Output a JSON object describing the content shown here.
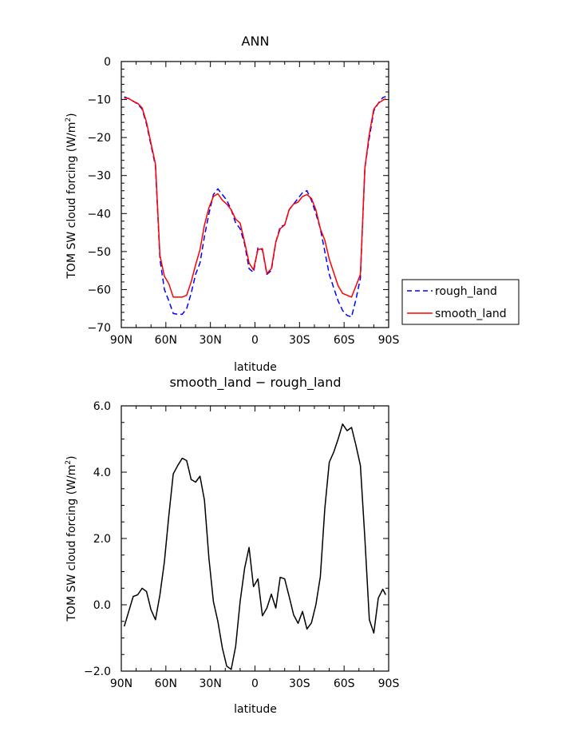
{
  "chart_data": [
    {
      "type": "line",
      "title": "ANN",
      "xlabel": "latitude",
      "ylabel_base": "TOM SW cloud forcing  (W/m",
      "ylabel_sup": "2",
      "ylabel_close": ")",
      "xlim": [
        90,
        -90
      ],
      "ylim": [
        -70,
        0
      ],
      "x_ticks": [
        90,
        60,
        30,
        0,
        -30,
        -60,
        -90
      ],
      "x_tick_labels": [
        "90N",
        "60N",
        "30N",
        "0",
        "30S",
        "60S",
        "90S"
      ],
      "y_ticks": [
        0,
        -10,
        -20,
        -30,
        -40,
        -50,
        -60,
        -70
      ],
      "y_tick_labels": [
        "0",
        "−10",
        "−20",
        "−30",
        "−40",
        "−50",
        "−60",
        "−70"
      ],
      "x": [
        88,
        85,
        82,
        79,
        76,
        73,
        70,
        67,
        64,
        61,
        58,
        55,
        52,
        49,
        46,
        43,
        40,
        37,
        34,
        31,
        28,
        25,
        22,
        19,
        16,
        13,
        10,
        7,
        4,
        1,
        -2,
        -5,
        -8,
        -11,
        -14,
        -17,
        -20,
        -23,
        -26,
        -29,
        -32,
        -35,
        -38,
        -41,
        -44,
        -47,
        -50,
        -53,
        -56,
        -59,
        -62,
        -65,
        -68,
        -71,
        -74,
        -77,
        -80,
        -83,
        -86,
        -88
      ],
      "series": [
        {
          "name": "rough_land",
          "color": "#0000ff",
          "dash": "dashed",
          "values": [
            -9.3,
            -9.8,
            -10.4,
            -11.2,
            -12.5,
            -16.5,
            -22.0,
            -27.5,
            -52.0,
            -60.0,
            -63.0,
            -66.3,
            -66.5,
            -66.5,
            -65.0,
            -61.0,
            -56.0,
            -53.0,
            -46.0,
            -40.0,
            -35.0,
            -33.5,
            -35.0,
            -36.5,
            -39.0,
            -42.5,
            -44.0,
            -48.0,
            -54.5,
            -55.5,
            -49.0,
            -49.5,
            -56.0,
            -55.0,
            -47.5,
            -43.5,
            -43.0,
            -39.0,
            -37.5,
            -36.0,
            -34.5,
            -34.0,
            -36.5,
            -40.0,
            -44.0,
            -50.0,
            -56.0,
            -59.5,
            -63.0,
            -65.5,
            -66.8,
            -67.2,
            -62.5,
            -57.0,
            -28.0,
            -20.0,
            -13.0,
            -11.0,
            -9.5,
            -9.2
          ]
        },
        {
          "name": "smooth_land",
          "color": "#ff0000",
          "dash": "solid",
          "values": [
            -9.6,
            -9.7,
            -10.5,
            -11.0,
            -12.2,
            -16.0,
            -21.5,
            -27.0,
            -51.0,
            -56.5,
            -58.5,
            -62.0,
            -62.0,
            -62.0,
            -61.5,
            -58.0,
            -53.5,
            -49.5,
            -43.0,
            -38.5,
            -35.5,
            -34.8,
            -36.5,
            -37.5,
            -39.0,
            -41.5,
            -42.5,
            -47.5,
            -53.0,
            -54.8,
            -49.5,
            -49.2,
            -55.8,
            -54.5,
            -47.5,
            -44.0,
            -43.0,
            -39.0,
            -37.5,
            -37.0,
            -35.5,
            -35.0,
            -36.0,
            -39.0,
            -44.0,
            -47.0,
            -52.0,
            -55.5,
            -59.0,
            -61.0,
            -61.5,
            -62.0,
            -59.0,
            -56.0,
            -28.0,
            -19.0,
            -12.5,
            -11.0,
            -10.2,
            -9.8
          ]
        }
      ]
    },
    {
      "type": "line",
      "title": "smooth_land − rough_land",
      "xlabel": "latitude",
      "ylabel_base": "TOM SW cloud forcing  (W/m",
      "ylabel_sup": "2",
      "ylabel_close": ")",
      "xlim": [
        90,
        -90
      ],
      "ylim": [
        -2.0,
        6.0
      ],
      "x_ticks": [
        90,
        60,
        30,
        0,
        -30,
        -60,
        -90
      ],
      "x_tick_labels": [
        "90N",
        "60N",
        "30N",
        "0",
        "30S",
        "60S",
        "90S"
      ],
      "y_ticks": [
        6.0,
        4.0,
        2.0,
        0.0,
        -2.0
      ],
      "y_tick_labels": [
        "6.0",
        "4.0",
        "2.0",
        "0.0",
        "−2.0"
      ],
      "x": [
        88,
        85,
        82,
        79,
        76,
        73,
        70,
        67,
        64,
        61,
        58,
        55,
        52,
        49,
        46,
        43,
        40,
        37,
        34,
        31,
        28,
        25,
        22,
        19,
        16,
        13,
        10,
        7,
        4,
        1,
        -2,
        -5,
        -8,
        -11,
        -14,
        -17,
        -20,
        -23,
        -26,
        -29,
        -32,
        -35,
        -38,
        -41,
        -44,
        -47,
        -50,
        -53,
        -56,
        -59,
        -62,
        -65,
        -68,
        -71,
        -74,
        -77,
        -80,
        -83,
        -86,
        -88
      ],
      "series": [
        {
          "name": "",
          "color": "#000000",
          "dash": "solid",
          "values": [
            -0.65,
            -0.2,
            0.25,
            0.3,
            0.5,
            0.4,
            -0.15,
            -0.45,
            0.3,
            1.3,
            2.7,
            3.95,
            4.2,
            4.42,
            4.35,
            3.78,
            3.7,
            3.88,
            3.15,
            1.4,
            0.1,
            -0.5,
            -1.3,
            -1.85,
            -1.95,
            -1.25,
            0.1,
            1.1,
            1.73,
            0.55,
            0.78,
            -0.33,
            -0.1,
            0.32,
            -0.1,
            0.83,
            0.78,
            0.25,
            -0.3,
            -0.56,
            -0.2,
            -0.73,
            -0.55,
            0.0,
            0.85,
            2.9,
            4.3,
            4.6,
            5.0,
            5.45,
            5.25,
            5.35,
            4.8,
            4.2,
            2.0,
            -0.45,
            -0.85,
            0.2,
            0.47,
            0.3
          ]
        }
      ]
    }
  ]
}
